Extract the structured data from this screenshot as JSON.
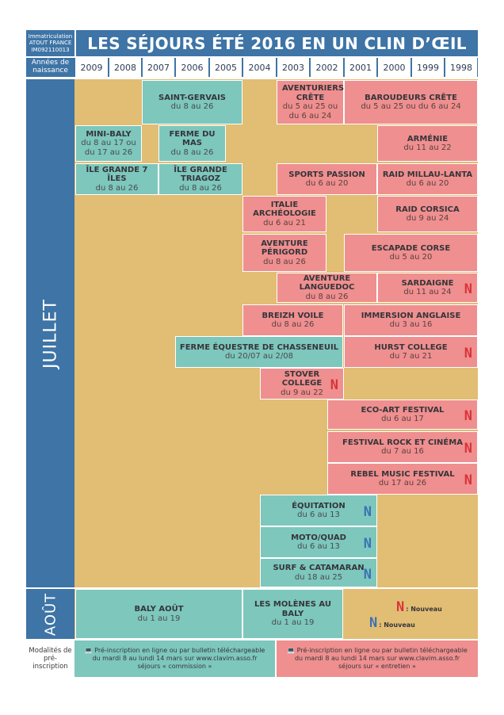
{
  "header": {
    "registration": [
      "Immatriculation",
      "ATOUT FRANCE",
      "IM092110013"
    ],
    "title": "LES SÉJOURS ÉTÉ 2016 EN UN CLIN D’ŒIL",
    "years_label": "Années de naissance",
    "years": [
      "2009",
      "2008",
      "2007",
      "2006",
      "2005",
      "2004",
      "2003",
      "2002",
      "2001",
      "2000",
      "1999",
      "1998"
    ]
  },
  "sections": {
    "juillet": "JUILLET",
    "aout": "AOÛT",
    "modalites": "Modalités de pré-inscription"
  },
  "new_badge": "N",
  "stays": [
    {
      "id": "saint-gervais",
      "name": "SAINT-GERVAIS",
      "dates": "du 8 au 26",
      "color": "teal",
      "new": ""
    },
    {
      "id": "aventuriers-crete",
      "name": "AVENTURIERS CRÊTE",
      "dates": "du 5 au 25 ou du 6 au 24",
      "color": "pink",
      "new": ""
    },
    {
      "id": "baroudeurs-crete",
      "name": "BAROUDEURS CRÊTE",
      "dates": "du 5 au 25 ou du 6 au 24",
      "color": "pink",
      "new": ""
    },
    {
      "id": "mini-baly",
      "name": "MINI-BALY",
      "dates": "du 8 au 17 ou du 17 au 26",
      "color": "teal",
      "new": ""
    },
    {
      "id": "ferme-du-mas",
      "name": "FERME DU MAS",
      "dates": "du 8 au 26",
      "color": "teal",
      "new": ""
    },
    {
      "id": "armenie",
      "name": "ARMÉNIE",
      "dates": "du 11 au 22",
      "color": "pink",
      "new": ""
    },
    {
      "id": "ile-grande-7-iles",
      "name": "ÎLE GRANDE 7 ÎLES",
      "dates": "du 8 au 26",
      "color": "teal",
      "new": ""
    },
    {
      "id": "ile-grande-triagoz",
      "name": "ÎLE GRANDE TRIAGOZ",
      "dates": "du 8 au 26",
      "color": "teal",
      "new": ""
    },
    {
      "id": "sports-passion",
      "name": "SPORTS PASSION",
      "dates": "du 6 au 20",
      "color": "pink",
      "new": ""
    },
    {
      "id": "raid-millau-lanta",
      "name": "RAID MILLAU-LANTA",
      "dates": "du 6 au 20",
      "color": "pink",
      "new": ""
    },
    {
      "id": "italie-archeologie",
      "name": "ITALIE ARCHÉOLOGIE",
      "dates": "du 6 au 21",
      "color": "pink",
      "new": ""
    },
    {
      "id": "raid-corsica",
      "name": "RAID CORSICA",
      "dates": "du 9 au 24",
      "color": "pink",
      "new": ""
    },
    {
      "id": "aventure-perigord",
      "name": "AVENTURE PÉRIGORD",
      "dates": "du 8 au 26",
      "color": "pink",
      "new": ""
    },
    {
      "id": "escapade-corse",
      "name": "ESCAPADE CORSE",
      "dates": "du 5 au 20",
      "color": "pink",
      "new": ""
    },
    {
      "id": "aventure-languedoc",
      "name": "AVENTURE LANGUEDOC",
      "dates": "du 8 au 26",
      "color": "pink",
      "new": ""
    },
    {
      "id": "sardaigne",
      "name": "SARDAIGNE",
      "dates": "du 11 au 24",
      "color": "pink",
      "new": "red"
    },
    {
      "id": "breizh-voile",
      "name": "BREIZH VOILE",
      "dates": "du 8 au 26",
      "color": "pink",
      "new": ""
    },
    {
      "id": "immersion-anglaise",
      "name": "IMMERSION ANGLAISE",
      "dates": "du 3 au 16",
      "color": "pink",
      "new": ""
    },
    {
      "id": "ferme-equestre",
      "name": "FERME ÉQUESTRE DE CHASSENEUIL",
      "dates": "du 20/07 au 2/08",
      "color": "teal",
      "new": ""
    },
    {
      "id": "hurst-college",
      "name": "HURST COLLEGE",
      "dates": "du 7 au 21",
      "color": "pink",
      "new": "red"
    },
    {
      "id": "stover-college",
      "name": "STOVER COLLEGE",
      "dates": "du 9 au 22",
      "color": "pink",
      "new": "red"
    },
    {
      "id": "eco-art-festival",
      "name": "ECO-ART FESTIVAL",
      "dates": "du 6 au 17",
      "color": "pink",
      "new": "red"
    },
    {
      "id": "festival-rock-cinema",
      "name": "FESTIVAL ROCK ET CINÉMA",
      "dates": "du 7 au 16",
      "color": "pink",
      "new": "red"
    },
    {
      "id": "rebel-music-festival",
      "name": "REBEL MUSIC FESTIVAL",
      "dates": "du 17 au 26",
      "color": "pink",
      "new": "red"
    },
    {
      "id": "equitation",
      "name": "ÉQUITATION",
      "dates": "du 6 au 13",
      "color": "teal",
      "new": "blue"
    },
    {
      "id": "moto-quad",
      "name": "MOTO/QUAD",
      "dates": "du 6 au 13",
      "color": "teal",
      "new": "blue"
    },
    {
      "id": "surf-catamaran",
      "name": "SURF & CATAMARAN",
      "dates": "du 18 au 25",
      "color": "teal",
      "new": "blue"
    },
    {
      "id": "baly-aout",
      "name": "BALY AOÛT",
      "dates": "du 1 au 19",
      "color": "teal",
      "new": ""
    },
    {
      "id": "les-molenes",
      "name": "LES MOLÈNES AU BALY",
      "dates": "du 1 au 19",
      "color": "teal",
      "new": ""
    }
  ],
  "legend": {
    "red": ": Nouveau",
    "blue": ": Nouveau"
  },
  "footer": {
    "commission": [
      "Pré-inscription en ligne ou par bulletin téléchargeable",
      "du mardi 8 au lundi 14 mars sur www.clavim.asso.fr",
      "séjours « commission »"
    ],
    "entretien": [
      "Pré-inscription en ligne ou par bulletin téléchargeable",
      "du mardi 8 au lundi 14 mars sur www.clavim.asso.fr",
      "séjours sur « entretien »"
    ]
  },
  "colors": {
    "blue": "#3e74a6",
    "tan": "#e2bd74",
    "teal": "#7dc7bd",
    "pink": "#ef8f8f",
    "new_red": "#d9333a",
    "new_blue": "#3c72b3"
  }
}
